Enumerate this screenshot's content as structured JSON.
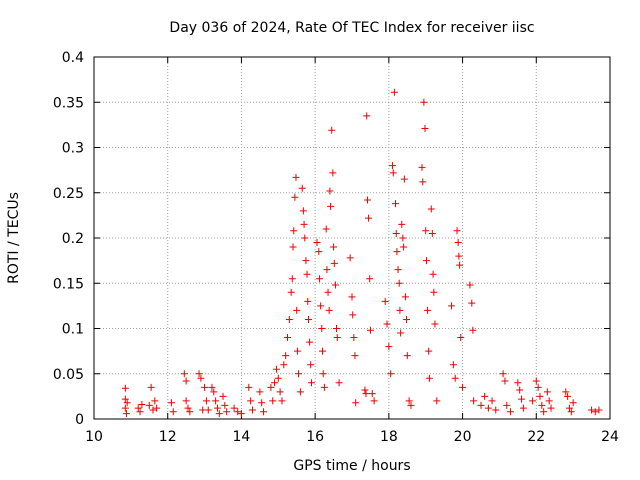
{
  "chart_data": {
    "type": "scatter",
    "title": "Day 036 of 2024, Rate Of TEC Index for receiver iisc",
    "xlabel": "GPS time / hours",
    "ylabel": "ROTI / TECUs",
    "xlim": [
      10,
      24
    ],
    "ylim": [
      0,
      0.4
    ],
    "xticks": [
      10,
      12,
      14,
      16,
      18,
      20,
      22,
      24
    ],
    "xtick_labels": [
      "10",
      "12",
      "14",
      "16",
      "18",
      "20",
      "22",
      "24"
    ],
    "yticks": [
      0,
      0.05,
      0.1,
      0.15,
      0.2,
      0.25,
      0.3,
      0.35,
      0.4
    ],
    "ytick_labels": [
      "0",
      "0.05",
      "0.1",
      "0.15",
      "0.2",
      "0.25",
      "0.3",
      "0.35",
      "0.4"
    ],
    "grid": true,
    "marker": "+",
    "color": "#ee0000",
    "series": [
      {
        "name": "ROTI",
        "points": [
          [
            10.85,
            0.034
          ],
          [
            10.85,
            0.022
          ],
          [
            10.85,
            0.012
          ],
          [
            10.88,
            0.006
          ],
          [
            10.9,
            0.018
          ],
          [
            11.2,
            0.012
          ],
          [
            11.25,
            0.008
          ],
          [
            11.3,
            0.016
          ],
          [
            11.5,
            0.015
          ],
          [
            11.55,
            0.035
          ],
          [
            11.6,
            0.01
          ],
          [
            11.65,
            0.02
          ],
          [
            11.7,
            0.012
          ],
          [
            12.1,
            0.018
          ],
          [
            12.15,
            0.008
          ],
          [
            12.45,
            0.05
          ],
          [
            12.5,
            0.042
          ],
          [
            12.5,
            0.02
          ],
          [
            12.55,
            0.012
          ],
          [
            12.6,
            0.008
          ],
          [
            12.85,
            0.05
          ],
          [
            12.9,
            0.045
          ],
          [
            12.95,
            0.01
          ],
          [
            13.0,
            0.035
          ],
          [
            13.05,
            0.02
          ],
          [
            13.1,
            0.01
          ],
          [
            13.2,
            0.035
          ],
          [
            13.25,
            0.03
          ],
          [
            13.3,
            0.02
          ],
          [
            13.35,
            0.012
          ],
          [
            13.4,
            0.006
          ],
          [
            13.5,
            0.025
          ],
          [
            13.55,
            0.015
          ],
          [
            13.6,
            0.008
          ],
          [
            13.8,
            0.012
          ],
          [
            13.9,
            0.008
          ],
          [
            14.0,
            0.006
          ],
          [
            14.2,
            0.035
          ],
          [
            14.25,
            0.02
          ],
          [
            14.3,
            0.01
          ],
          [
            14.5,
            0.03
          ],
          [
            14.55,
            0.018
          ],
          [
            14.6,
            0.008
          ],
          [
            14.8,
            0.035
          ],
          [
            14.85,
            0.02
          ],
          [
            14.9,
            0.04
          ],
          [
            14.95,
            0.055
          ],
          [
            15.0,
            0.045
          ],
          [
            15.05,
            0.03
          ],
          [
            15.1,
            0.02
          ],
          [
            15.15,
            0.06
          ],
          [
            15.2,
            0.07
          ],
          [
            15.25,
            0.09
          ],
          [
            15.3,
            0.11
          ],
          [
            15.35,
            0.14
          ],
          [
            15.38,
            0.155
          ],
          [
            15.4,
            0.19
          ],
          [
            15.42,
            0.208
          ],
          [
            15.45,
            0.245
          ],
          [
            15.48,
            0.267
          ],
          [
            15.5,
            0.12
          ],
          [
            15.52,
            0.075
          ],
          [
            15.55,
            0.05
          ],
          [
            15.6,
            0.03
          ],
          [
            15.65,
            0.255
          ],
          [
            15.68,
            0.23
          ],
          [
            15.7,
            0.215
          ],
          [
            15.72,
            0.2
          ],
          [
            15.75,
            0.175
          ],
          [
            15.78,
            0.16
          ],
          [
            15.8,
            0.13
          ],
          [
            15.82,
            0.11
          ],
          [
            15.85,
            0.085
          ],
          [
            15.88,
            0.06
          ],
          [
            15.9,
            0.04
          ],
          [
            16.05,
            0.195
          ],
          [
            16.1,
            0.185
          ],
          [
            16.12,
            0.155
          ],
          [
            16.15,
            0.125
          ],
          [
            16.18,
            0.1
          ],
          [
            16.2,
            0.075
          ],
          [
            16.22,
            0.05
          ],
          [
            16.25,
            0.035
          ],
          [
            16.3,
            0.21
          ],
          [
            16.32,
            0.165
          ],
          [
            16.35,
            0.14
          ],
          [
            16.38,
            0.12
          ],
          [
            16.4,
            0.252
          ],
          [
            16.42,
            0.235
          ],
          [
            16.45,
            0.319
          ],
          [
            16.48,
            0.272
          ],
          [
            16.5,
            0.19
          ],
          [
            16.52,
            0.172
          ],
          [
            16.55,
            0.148
          ],
          [
            16.58,
            0.1
          ],
          [
            16.6,
            0.09
          ],
          [
            16.65,
            0.04
          ],
          [
            16.95,
            0.178
          ],
          [
            17.0,
            0.135
          ],
          [
            17.02,
            0.115
          ],
          [
            17.05,
            0.09
          ],
          [
            17.08,
            0.07
          ],
          [
            17.1,
            0.018
          ],
          [
            17.35,
            0.032
          ],
          [
            17.38,
            0.028
          ],
          [
            17.4,
            0.335
          ],
          [
            17.42,
            0.242
          ],
          [
            17.45,
            0.222
          ],
          [
            17.48,
            0.155
          ],
          [
            17.5,
            0.098
          ],
          [
            17.55,
            0.028
          ],
          [
            17.6,
            0.02
          ],
          [
            17.9,
            0.13
          ],
          [
            17.95,
            0.105
          ],
          [
            18.0,
            0.08
          ],
          [
            18.05,
            0.05
          ],
          [
            18.1,
            0.28
          ],
          [
            18.12,
            0.272
          ],
          [
            18.15,
            0.361
          ],
          [
            18.18,
            0.238
          ],
          [
            18.2,
            0.205
          ],
          [
            18.22,
            0.185
          ],
          [
            18.25,
            0.165
          ],
          [
            18.28,
            0.15
          ],
          [
            18.3,
            0.12
          ],
          [
            18.32,
            0.095
          ],
          [
            18.35,
            0.215
          ],
          [
            18.38,
            0.2
          ],
          [
            18.4,
            0.19
          ],
          [
            18.42,
            0.265
          ],
          [
            18.45,
            0.135
          ],
          [
            18.48,
            0.11
          ],
          [
            18.5,
            0.07
          ],
          [
            18.55,
            0.02
          ],
          [
            18.6,
            0.015
          ],
          [
            18.9,
            0.278
          ],
          [
            18.92,
            0.262
          ],
          [
            18.95,
            0.35
          ],
          [
            18.98,
            0.321
          ],
          [
            19.0,
            0.208
          ],
          [
            19.02,
            0.175
          ],
          [
            19.05,
            0.12
          ],
          [
            19.08,
            0.075
          ],
          [
            19.1,
            0.045
          ],
          [
            19.15,
            0.232
          ],
          [
            19.18,
            0.205
          ],
          [
            19.2,
            0.16
          ],
          [
            19.22,
            0.14
          ],
          [
            19.25,
            0.105
          ],
          [
            19.3,
            0.02
          ],
          [
            19.7,
            0.125
          ],
          [
            19.75,
            0.06
          ],
          [
            19.8,
            0.045
          ],
          [
            19.85,
            0.208
          ],
          [
            19.88,
            0.195
          ],
          [
            19.9,
            0.18
          ],
          [
            19.92,
            0.17
          ],
          [
            19.95,
            0.09
          ],
          [
            20.0,
            0.035
          ],
          [
            20.2,
            0.148
          ],
          [
            20.25,
            0.128
          ],
          [
            20.28,
            0.098
          ],
          [
            20.3,
            0.02
          ],
          [
            20.5,
            0.015
          ],
          [
            20.6,
            0.025
          ],
          [
            20.7,
            0.012
          ],
          [
            20.8,
            0.02
          ],
          [
            20.9,
            0.01
          ],
          [
            21.1,
            0.05
          ],
          [
            21.15,
            0.042
          ],
          [
            21.2,
            0.015
          ],
          [
            21.3,
            0.008
          ],
          [
            21.5,
            0.04
          ],
          [
            21.55,
            0.032
          ],
          [
            21.6,
            0.022
          ],
          [
            21.65,
            0.012
          ],
          [
            21.9,
            0.02
          ],
          [
            22.0,
            0.042
          ],
          [
            22.05,
            0.035
          ],
          [
            22.1,
            0.025
          ],
          [
            22.15,
            0.015
          ],
          [
            22.2,
            0.008
          ],
          [
            22.3,
            0.03
          ],
          [
            22.35,
            0.02
          ],
          [
            22.4,
            0.012
          ],
          [
            22.8,
            0.03
          ],
          [
            22.85,
            0.025
          ],
          [
            22.9,
            0.012
          ],
          [
            22.95,
            0.008
          ],
          [
            23.0,
            0.018
          ],
          [
            23.5,
            0.01
          ],
          [
            23.6,
            0.008
          ],
          [
            23.7,
            0.01
          ]
        ]
      }
    ]
  }
}
